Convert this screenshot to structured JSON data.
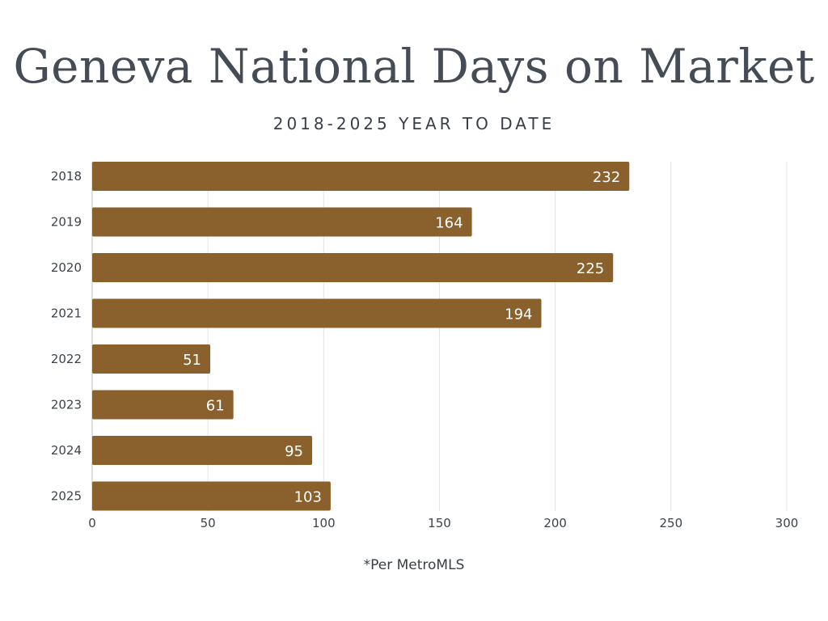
{
  "header": {
    "title": "Geneva National Days on Market",
    "subtitle": "2018-2025 YEAR TO DATE"
  },
  "footer": {
    "note": "*Per MetroMLS"
  },
  "colors": {
    "bar": "#8a612d",
    "grid": "#e3e3e3",
    "axis": "#bdbdbd"
  },
  "chart_data": {
    "type": "bar",
    "orientation": "horizontal",
    "categories": [
      "2018",
      "2019",
      "2020",
      "2021",
      "2022",
      "2023",
      "2024",
      "2025"
    ],
    "values": [
      232,
      164,
      225,
      194,
      51,
      61,
      95,
      103
    ],
    "xlim": [
      0,
      300
    ],
    "xticks": [
      0,
      50,
      100,
      150,
      200,
      250,
      300
    ],
    "grid": true,
    "legend": "none",
    "data_labels": true
  }
}
